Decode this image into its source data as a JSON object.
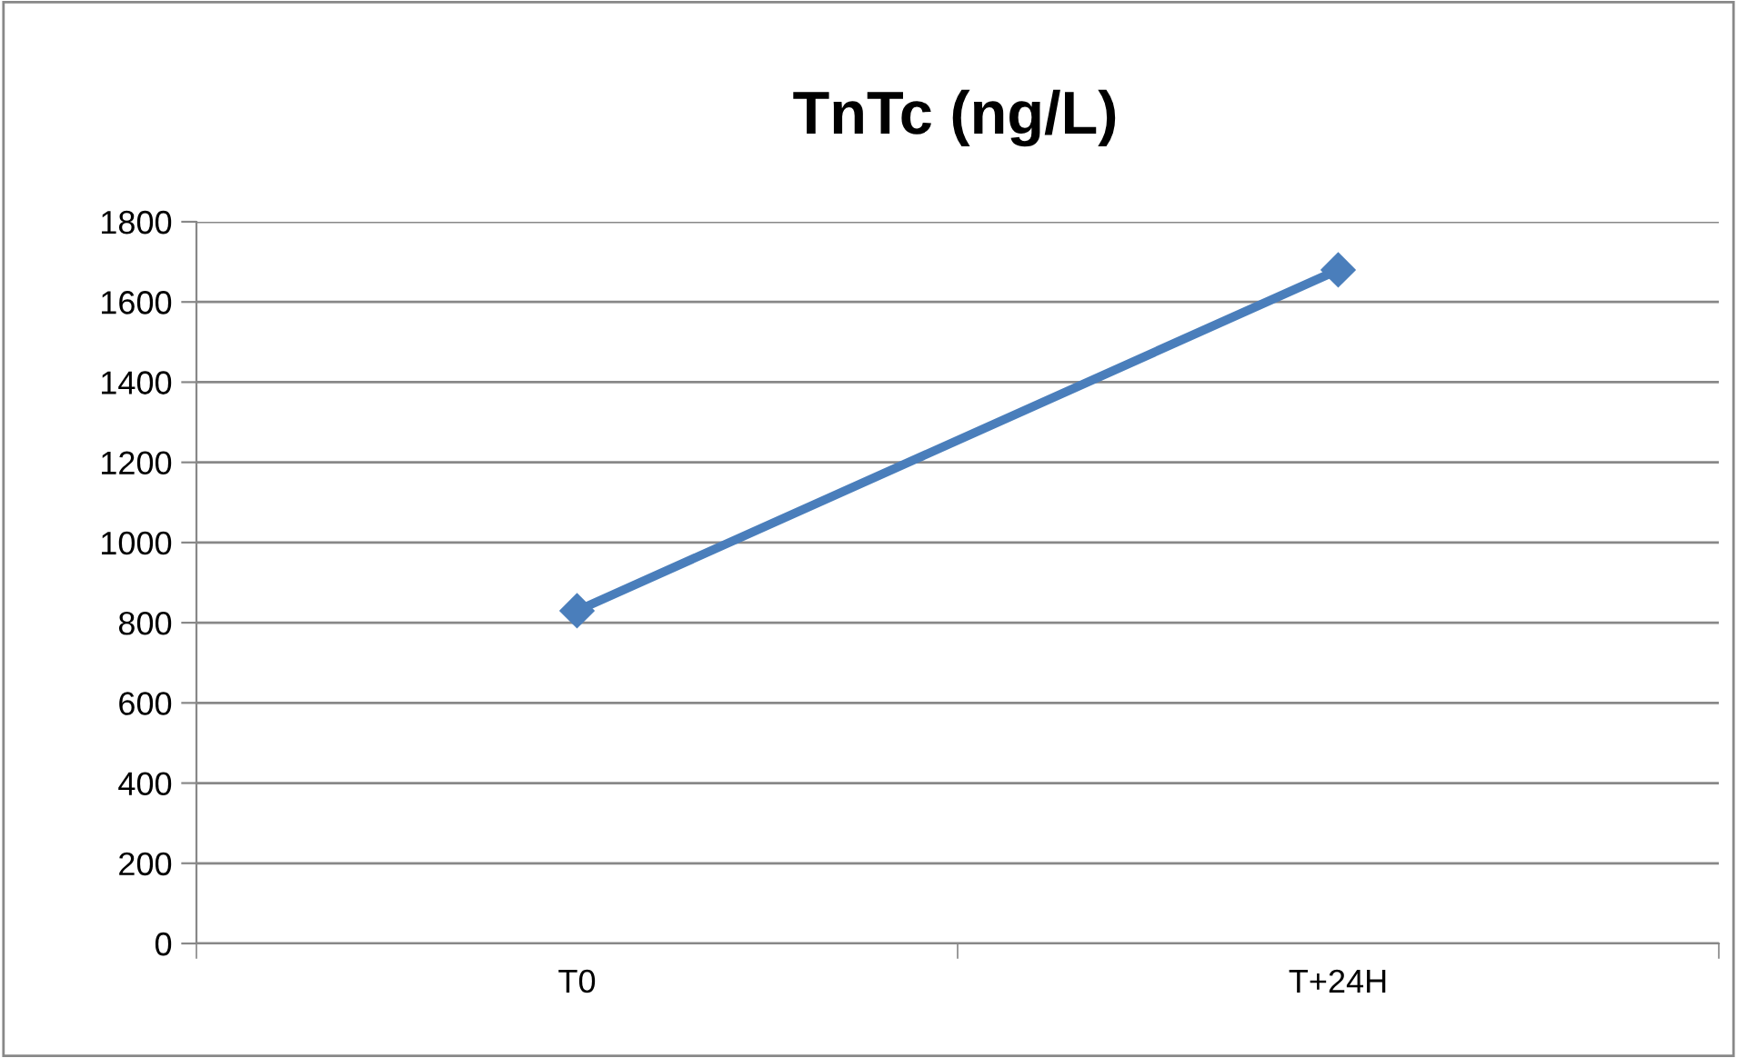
{
  "chart_data": {
    "type": "line",
    "title": "TnTc (ng/L)",
    "categories": [
      "T0",
      "T+24H"
    ],
    "series": [
      {
        "color": "#4a7ebb",
        "values": [
          830,
          1680
        ]
      }
    ],
    "ylim": [
      0,
      1800
    ],
    "yticks": [
      0,
      200,
      400,
      600,
      800,
      1000,
      1200,
      1400,
      1600,
      1800
    ],
    "grid": "y",
    "marker": "diamond",
    "line_style": "solid",
    "legend": false
  }
}
